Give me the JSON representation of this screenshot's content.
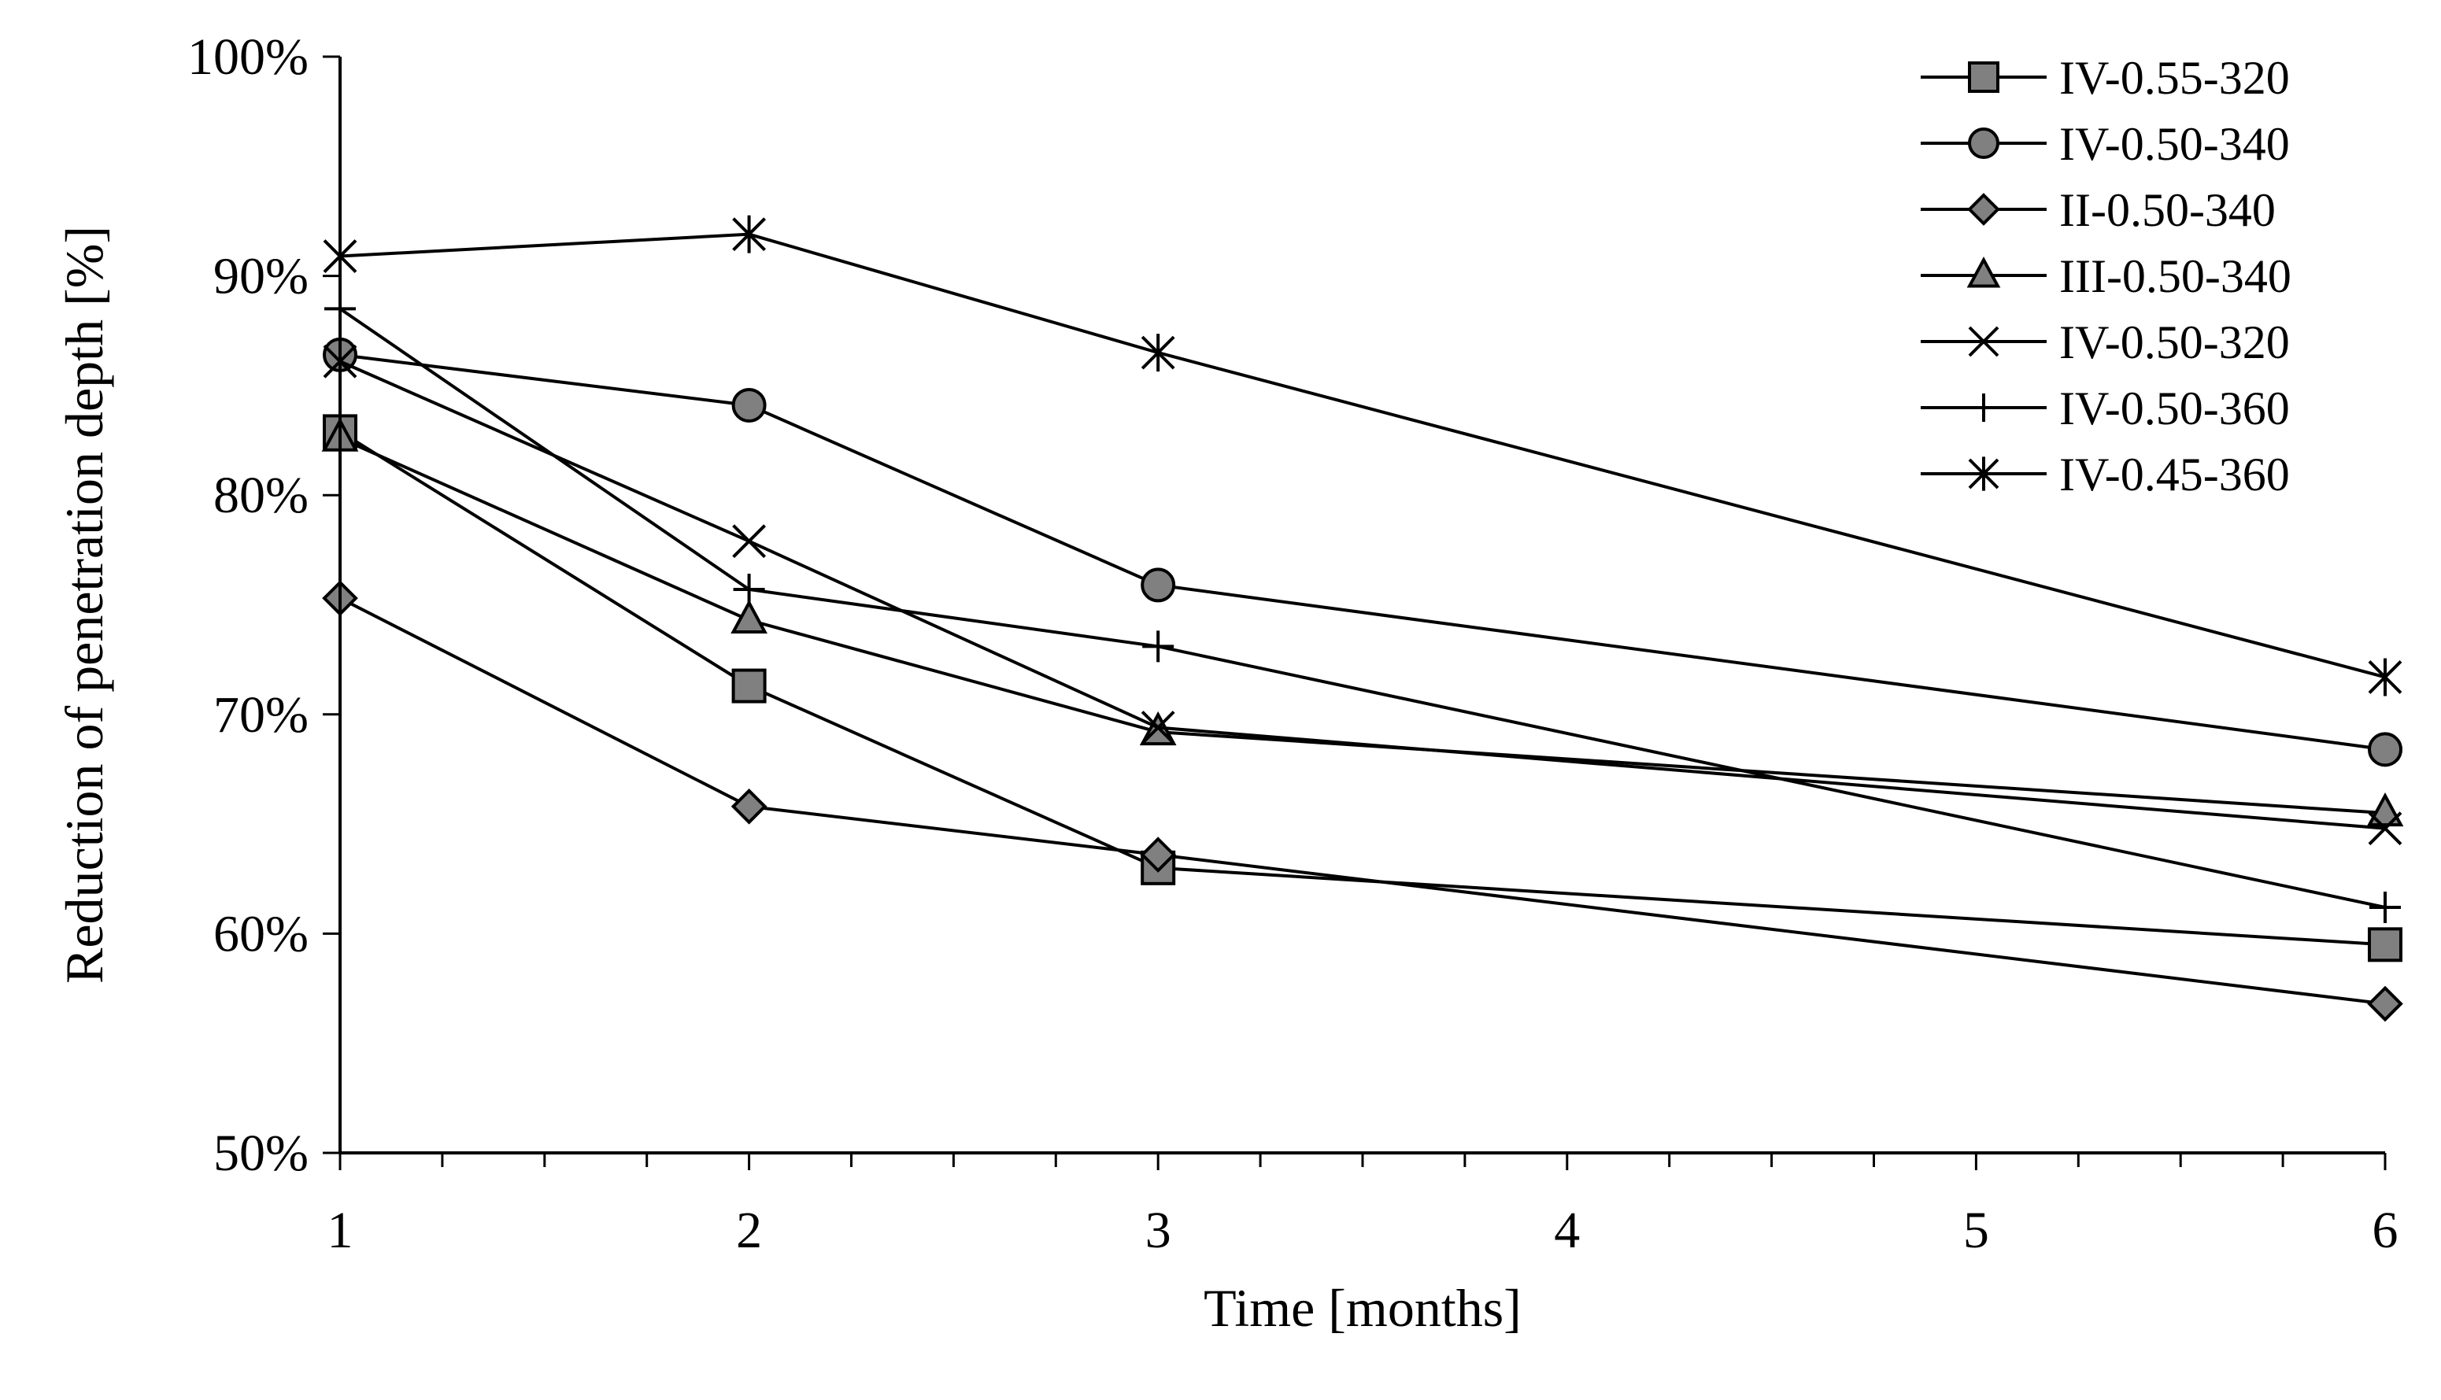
{
  "chart_data": {
    "type": "line",
    "title": "",
    "xlabel": "Time [months]",
    "ylabel": "Reduction of penetration depth [%]",
    "xlim": [
      1,
      6
    ],
    "ylim": [
      50,
      100
    ],
    "x_ticks": [
      "1",
      "2",
      "3",
      "4",
      "5",
      "6"
    ],
    "y_ticks": [
      "50%",
      "60%",
      "70%",
      "80%",
      "90%",
      "100%"
    ],
    "grid": false,
    "legend_position": "top-right",
    "series": [
      {
        "name": "IV-0.55-320",
        "marker": "square",
        "x": [
          1,
          2,
          3,
          6
        ],
        "values": [
          82.9,
          71.3,
          63.0,
          59.5
        ]
      },
      {
        "name": "IV-0.50-340",
        "marker": "circle",
        "x": [
          1,
          2,
          3,
          6
        ],
        "values": [
          86.4,
          84.1,
          75.9,
          68.4
        ]
      },
      {
        "name": "II-0.50-340",
        "marker": "diamond",
        "x": [
          1,
          2,
          3,
          6
        ],
        "values": [
          75.3,
          65.8,
          63.6,
          56.8
        ]
      },
      {
        "name": "III-0.50-340",
        "marker": "triangle",
        "x": [
          1,
          2,
          3,
          6
        ],
        "values": [
          82.6,
          74.3,
          69.2,
          65.5
        ]
      },
      {
        "name": "IV-0.50-320",
        "marker": "x",
        "x": [
          1,
          2,
          3,
          6
        ],
        "values": [
          86.1,
          77.9,
          69.4,
          64.8
        ]
      },
      {
        "name": "IV-0.50-360",
        "marker": "plus",
        "x": [
          1,
          2,
          3,
          6
        ],
        "values": [
          88.5,
          75.7,
          73.1,
          61.2
        ]
      },
      {
        "name": "IV-0.45-360",
        "marker": "asterisk",
        "x": [
          1,
          2,
          3,
          6
        ],
        "values": [
          90.9,
          91.9,
          86.5,
          71.7
        ]
      }
    ]
  }
}
